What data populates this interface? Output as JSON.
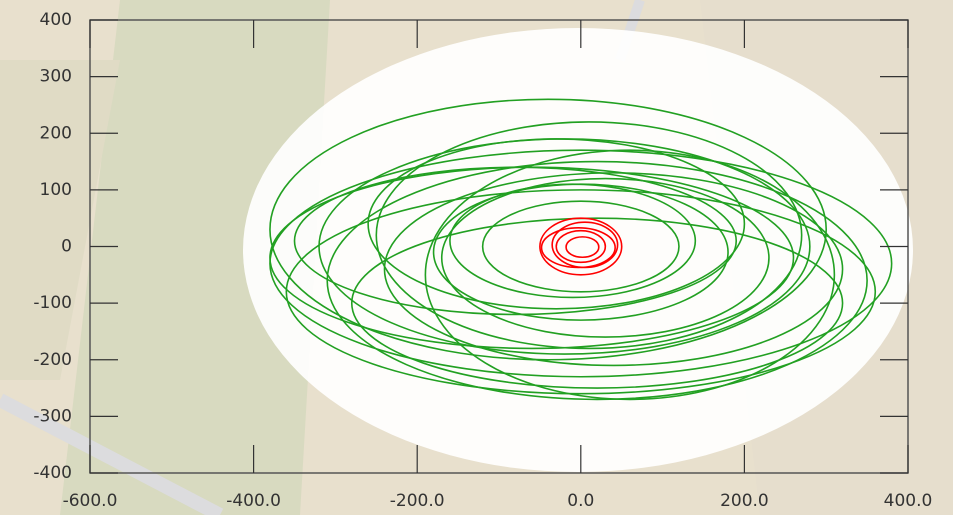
{
  "chart_data": {
    "type": "ellipse",
    "xlim": [
      -600,
      400
    ],
    "ylim": [
      -400,
      400
    ],
    "xticks": [
      {
        "value": -600,
        "label": "-600.0"
      },
      {
        "value": -400,
        "label": "-400.0"
      },
      {
        "value": -200,
        "label": "-200.0"
      },
      {
        "value": 0,
        "label": "0.0"
      },
      {
        "value": 200,
        "label": "200.0"
      },
      {
        "value": 400,
        "label": "400.0"
      }
    ],
    "yticks": [
      -400,
      -300,
      -200,
      -100,
      0,
      100,
      200,
      300,
      400
    ],
    "series": [
      {
        "color": "#22a022",
        "ellipses": [
          {
            "cx": 0,
            "cy": -30,
            "rx": 380,
            "ry": 200
          },
          {
            "cx": -40,
            "cy": 30,
            "rx": 340,
            "ry": 230
          },
          {
            "cx": 20,
            "cy": -60,
            "rx": 330,
            "ry": 210
          },
          {
            "cx": -20,
            "cy": 0,
            "rx": 300,
            "ry": 190
          },
          {
            "cx": 40,
            "cy": -40,
            "rx": 280,
            "ry": 170
          },
          {
            "cx": -60,
            "cy": -20,
            "rx": 320,
            "ry": 160
          },
          {
            "cx": 10,
            "cy": 20,
            "rx": 260,
            "ry": 200
          },
          {
            "cx": 0,
            "cy": -80,
            "rx": 360,
            "ry": 180
          },
          {
            "cx": -30,
            "cy": 40,
            "rx": 230,
            "ry": 150
          },
          {
            "cx": 30,
            "cy": -20,
            "rx": 200,
            "ry": 140
          },
          {
            "cx": 0,
            "cy": -10,
            "rx": 180,
            "ry": 120
          },
          {
            "cx": -10,
            "cy": 10,
            "rx": 150,
            "ry": 100
          },
          {
            "cx": 60,
            "cy": -50,
            "rx": 250,
            "ry": 220
          },
          {
            "cx": -80,
            "cy": 10,
            "rx": 270,
            "ry": 130
          },
          {
            "cx": 20,
            "cy": -100,
            "rx": 300,
            "ry": 150
          },
          {
            "cx": 0,
            "cy": 0,
            "rx": 120,
            "ry": 80
          }
        ]
      },
      {
        "color": "#ff0000",
        "ellipses": [
          {
            "cx": 0,
            "cy": 0,
            "rx": 50,
            "ry": 50
          },
          {
            "cx": 5,
            "cy": 3,
            "rx": 40,
            "ry": 40
          },
          {
            "cx": -3,
            "cy": -2,
            "rx": 45,
            "ry": 35
          },
          {
            "cx": 0,
            "cy": 0,
            "rx": 30,
            "ry": 28
          },
          {
            "cx": 2,
            "cy": -1,
            "rx": 20,
            "ry": 18
          }
        ]
      }
    ]
  }
}
